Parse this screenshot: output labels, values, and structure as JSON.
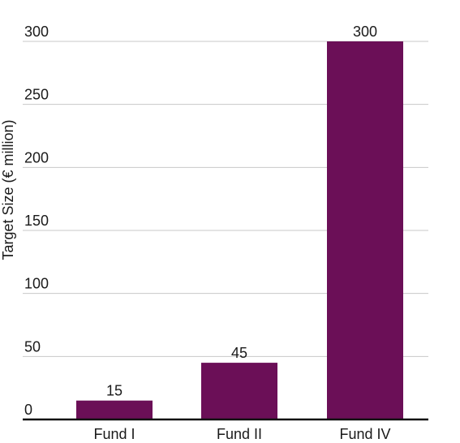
{
  "chart_data": {
    "type": "bar",
    "categories": [
      "Fund I",
      "Fund II",
      "Fund IV"
    ],
    "values": [
      15,
      45,
      300
    ],
    "data_labels": [
      "15",
      "45",
      "300"
    ],
    "title": "",
    "xlabel": "",
    "ylabel": "Target Size (€ million)",
    "ylim": [
      0,
      300
    ],
    "yticks": [
      0,
      50,
      100,
      150,
      200,
      250,
      300
    ],
    "grid": true,
    "legend": "none",
    "bar_color": "#6b0f57",
    "grid_color": "#c8c8c8",
    "axis_color": "#111111"
  }
}
